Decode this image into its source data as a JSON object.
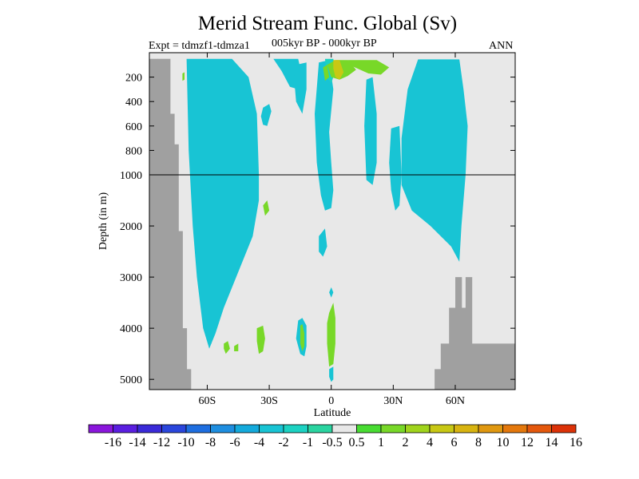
{
  "chart_data": {
    "type": "heatmap",
    "title": "Merid Stream Func. Global (Sv)",
    "subtitle_left": "Expt = tdmzf1-tdmza1",
    "subtitle_center": "005kyr BP - 000kyr BP",
    "subtitle_right": "ANN",
    "xlabel": "Latitude",
    "ylabel": "Depth (in m)",
    "x_ticks": [
      {
        "value": -60,
        "label": "60S"
      },
      {
        "value": -30,
        "label": "30S"
      },
      {
        "value": 0,
        "label": "0"
      },
      {
        "value": 30,
        "label": "30N"
      },
      {
        "value": 60,
        "label": "60N"
      }
    ],
    "xlim": [
      -88,
      89
    ],
    "y_ticks_upper": [
      200,
      400,
      600,
      800,
      1000
    ],
    "y_ticks_lower": [
      1000,
      2000,
      3000,
      4000,
      5000
    ],
    "ylim_upper": [
      0,
      1000
    ],
    "ylim_lower": [
      1000,
      5200
    ],
    "reference_line_depth": 1000,
    "colorbar": {
      "labels": [
        "-16",
        "-14",
        "-12",
        "-10",
        "-8",
        "-6",
        "-4",
        "-2",
        "-1",
        "-0.5",
        "0.5",
        "1",
        "2",
        "4",
        "6",
        "8",
        "10",
        "12",
        "14",
        "16"
      ],
      "colors": [
        "#8a16dc",
        "#5a1ee0",
        "#3a2ad8",
        "#2a46dc",
        "#1e6ee0",
        "#1e8ee0",
        "#14aadc",
        "#18c4d4",
        "#1cd2c2",
        "#2ad4a0",
        "#e8e8e8",
        "#48dc32",
        "#78d828",
        "#a0d41c",
        "#c8c814",
        "#d8b410",
        "#e09810",
        "#e4780c",
        "#e4580c",
        "#dc3208"
      ]
    },
    "land_color": "#a0a0a0",
    "background_color": "#e8e8e8",
    "regions": [
      {
        "value": -2.5,
        "points": [
          [
            -67,
            55
          ],
          [
            -59,
            55
          ],
          [
            -53,
            75
          ],
          [
            -47,
            140
          ],
          [
            -45,
            300
          ],
          [
            -43,
            900
          ],
          [
            -42,
            1400
          ],
          [
            -43,
            2000
          ],
          [
            -48,
            2600
          ],
          [
            -53,
            3200
          ],
          [
            -56,
            3800
          ],
          [
            -58,
            4300
          ],
          [
            -59,
            4350
          ],
          [
            -60,
            3800
          ],
          [
            -62,
            3000
          ],
          [
            -64,
            2000
          ],
          [
            -65,
            1200
          ],
          [
            -66,
            700
          ],
          [
            -67,
            300
          ],
          [
            -68,
            100
          ]
        ]
      },
      {
        "value": -2.5,
        "points": [
          [
            45,
            60
          ],
          [
            58,
            60
          ],
          [
            62,
            200
          ],
          [
            64,
            500
          ],
          [
            63,
            800
          ],
          [
            62,
            1200
          ],
          [
            62,
            1800
          ],
          [
            61,
            2300
          ],
          [
            57,
            2000
          ],
          [
            48,
            1800
          ],
          [
            40,
            1500
          ],
          [
            38,
            1200
          ],
          [
            38,
            800
          ],
          [
            41,
            400
          ],
          [
            43,
            150
          ]
        ]
      },
      {
        "value": -1.5,
        "points": [
          [
            -70,
            50
          ],
          [
            -48,
            50
          ],
          [
            -40,
            200
          ],
          [
            -36,
            500
          ],
          [
            -35,
            1000
          ],
          [
            -35,
            1500
          ],
          [
            -38,
            2200
          ],
          [
            -44,
            2800
          ],
          [
            -52,
            3600
          ],
          [
            -56,
            4100
          ],
          [
            -59,
            4400
          ],
          [
            -62,
            4000
          ],
          [
            -65,
            3000
          ],
          [
            -67,
            2000
          ],
          [
            -69,
            800
          ]
        ]
      },
      {
        "value": -1.5,
        "points": [
          [
            42,
            55
          ],
          [
            62,
            55
          ],
          [
            64,
            300
          ],
          [
            66,
            600
          ],
          [
            65,
            1000
          ],
          [
            63,
            2000
          ],
          [
            62,
            2700
          ],
          [
            58,
            2400
          ],
          [
            48,
            2000
          ],
          [
            39,
            1700
          ],
          [
            34,
            1200
          ],
          [
            34,
            700
          ],
          [
            37,
            300
          ]
        ]
      },
      {
        "value": -1.5,
        "points": [
          [
            -33,
            450
          ],
          [
            -30,
            420
          ],
          [
            -29,
            480
          ],
          [
            -31,
            600
          ],
          [
            -33,
            590
          ],
          [
            -34,
            520
          ]
        ]
      },
      {
        "value": -1.5,
        "points": [
          [
            -28,
            50
          ],
          [
            -16,
            50
          ],
          [
            -14,
            200
          ],
          [
            -16,
            300
          ],
          [
            -20,
            280
          ],
          [
            -24,
            150
          ]
        ]
      },
      {
        "value": -1.5,
        "points": [
          [
            -6,
            80
          ],
          [
            -1,
            60
          ],
          [
            1,
            300
          ],
          [
            -1,
            650
          ],
          [
            0,
            900
          ],
          [
            1,
            1300
          ],
          [
            0,
            1650
          ],
          [
            -3,
            1700
          ],
          [
            -5,
            1400
          ],
          [
            -7,
            900
          ],
          [
            -8,
            500
          ]
        ]
      },
      {
        "value": -1.5,
        "points": [
          [
            -6,
            2200
          ],
          [
            -3,
            2050
          ],
          [
            -2,
            2400
          ],
          [
            -4,
            2600
          ],
          [
            -6,
            2500
          ]
        ]
      },
      {
        "value": -1.5,
        "points": [
          [
            17,
            220
          ],
          [
            20,
            200
          ],
          [
            22,
            500
          ],
          [
            22,
            900
          ],
          [
            20,
            1200
          ],
          [
            17,
            1100
          ],
          [
            16,
            600
          ]
        ]
      },
      {
        "value": -1.5,
        "points": [
          [
            29,
            620
          ],
          [
            33,
            600
          ],
          [
            34,
            1000
          ],
          [
            33,
            1600
          ],
          [
            31,
            1700
          ],
          [
            29,
            1300
          ],
          [
            28,
            900
          ]
        ]
      },
      {
        "value": -1.5,
        "points": [
          [
            -17,
            100
          ],
          [
            -12,
            80
          ],
          [
            -12,
            300
          ],
          [
            -14,
            500
          ],
          [
            -17,
            400
          ],
          [
            -18,
            200
          ]
        ]
      },
      {
        "value": -0.75,
        "points": [
          [
            -3,
            50
          ],
          [
            1,
            50
          ],
          [
            2,
            150
          ],
          [
            0,
            250
          ],
          [
            -2,
            200
          ]
        ]
      },
      {
        "value": 1.5,
        "points": [
          [
            -33,
            1600
          ],
          [
            -31,
            1500
          ],
          [
            -30,
            1700
          ],
          [
            -32,
            1800
          ]
        ]
      },
      {
        "value": 1.5,
        "points": [
          [
            -36,
            4000
          ],
          [
            -33,
            3950
          ],
          [
            -32,
            4200
          ],
          [
            -33,
            4450
          ],
          [
            -35,
            4500
          ],
          [
            -36,
            4250
          ]
        ]
      },
      {
        "value": 1.5,
        "points": [
          [
            -52,
            4300
          ],
          [
            -50,
            4250
          ],
          [
            -49,
            4400
          ],
          [
            -51,
            4500
          ],
          [
            -52,
            4400
          ]
        ]
      },
      {
        "value": 1.5,
        "points": [
          [
            -47,
            4350
          ],
          [
            -45,
            4300
          ],
          [
            -45,
            4450
          ],
          [
            -47,
            4450
          ]
        ]
      },
      {
        "value": -1.5,
        "points": [
          [
            -16,
            3850
          ],
          [
            -14,
            3800
          ],
          [
            -12,
            3950
          ],
          [
            -12,
            4350
          ],
          [
            -13,
            4550
          ],
          [
            -15,
            4500
          ],
          [
            -17,
            4200
          ]
        ]
      },
      {
        "value": 1.5,
        "points": [
          [
            -15,
            3950
          ],
          [
            -14,
            3920
          ],
          [
            -13,
            4100
          ],
          [
            -13,
            4350
          ],
          [
            -14,
            4450
          ],
          [
            -15,
            4300
          ]
        ]
      },
      {
        "value": 1.5,
        "points": [
          [
            -1,
            3700
          ],
          [
            1,
            3500
          ],
          [
            2,
            3800
          ],
          [
            2,
            4300
          ],
          [
            1,
            4700
          ],
          [
            -1,
            4750
          ],
          [
            -2,
            4300
          ],
          [
            -2,
            3900
          ]
        ]
      },
      {
        "value": -1.5,
        "points": [
          [
            -1,
            3300
          ],
          [
            0,
            3200
          ],
          [
            1,
            3300
          ],
          [
            0,
            3400
          ]
        ]
      },
      {
        "value": -1.5,
        "points": [
          [
            -1,
            4800
          ],
          [
            1,
            4750
          ],
          [
            1,
            5000
          ],
          [
            0,
            5050
          ],
          [
            -1,
            4950
          ]
        ]
      },
      {
        "value": 1.5,
        "points": [
          [
            -2,
            100
          ],
          [
            2,
            60
          ],
          [
            8,
            60
          ],
          [
            12,
            140
          ],
          [
            8,
            190
          ],
          [
            4,
            220
          ],
          [
            0,
            200
          ]
        ]
      },
      {
        "value": 1.5,
        "points": [
          [
            8,
            60
          ],
          [
            22,
            60
          ],
          [
            28,
            120
          ],
          [
            24,
            180
          ],
          [
            18,
            170
          ],
          [
            10,
            110
          ]
        ]
      },
      {
        "value": 1.5,
        "points": [
          [
            -72,
            170
          ],
          [
            -71,
            160
          ],
          [
            -71,
            220
          ],
          [
            -72,
            230
          ]
        ]
      },
      {
        "value": 1.5,
        "points": [
          [
            -4,
            120
          ],
          [
            -2,
            100
          ],
          [
            -1,
            200
          ],
          [
            -3,
            230
          ]
        ]
      },
      {
        "value": 5.0,
        "points": [
          [
            1,
            60
          ],
          [
            4,
            60
          ],
          [
            6,
            160
          ],
          [
            4,
            220
          ],
          [
            2,
            200
          ],
          [
            1,
            130
          ]
        ]
      }
    ],
    "land_columns": [
      {
        "lon": [
          -88,
          -84
        ],
        "depth_top": 50
      },
      {
        "lon": [
          -84,
          -78
        ],
        "depth_top": 50
      },
      {
        "lon": [
          -78,
          -76
        ],
        "depth_top": 500
      },
      {
        "lon": [
          -76,
          -74
        ],
        "depth_top": 750
      },
      {
        "lon": [
          -74,
          -72
        ],
        "depth_top": 2100
      },
      {
        "lon": [
          -72,
          -70
        ],
        "depth_top": 4000
      },
      {
        "lon": [
          -70,
          -68
        ],
        "depth_top": 4800
      },
      {
        "lon": [
          50,
          53
        ],
        "depth_top": 4800
      },
      {
        "lon": [
          53,
          57
        ],
        "depth_top": 4300
      },
      {
        "lon": [
          57,
          60
        ],
        "depth_top": 3600
      },
      {
        "lon": [
          60,
          63
        ],
        "depth_top": 3000
      },
      {
        "lon": [
          63,
          65
        ],
        "depth_top": 3600
      },
      {
        "lon": [
          65,
          68
        ],
        "depth_top": 3000
      },
      {
        "lon": [
          68,
          73
        ],
        "depth_top": 4300
      },
      {
        "lon": [
          73,
          89
        ],
        "depth_top": 4300
      }
    ]
  }
}
